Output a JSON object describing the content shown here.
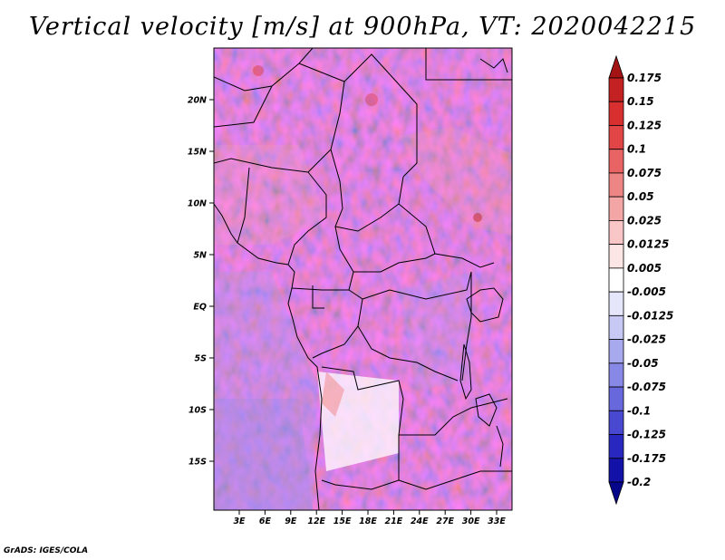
{
  "title": "Vertical velocity [m/s] at 900hPa, VT: 2020042215",
  "credit": "GrADS: IGES/COLA",
  "map": {
    "lat_labels": [
      "20N",
      "15N",
      "10N",
      "5N",
      "EQ",
      "5S",
      "10S",
      "15S"
    ],
    "lon_labels": [
      "3E",
      "6E",
      "9E",
      "12E",
      "15E",
      "18E",
      "21E",
      "24E",
      "27E",
      "30E",
      "33E"
    ],
    "lat_range": [
      -20,
      24.5
    ],
    "lon_range": [
      0,
      35
    ]
  },
  "colorbar": {
    "labels": [
      "0.175",
      "0.15",
      "0.125",
      "0.1",
      "0.075",
      "0.05",
      "0.025",
      "0.0125",
      "0.005",
      "-0.005",
      "-0.0125",
      "-0.025",
      "-0.05",
      "-0.075",
      "-0.1",
      "-0.125",
      "-0.175",
      "-0.2"
    ],
    "colors": [
      "#a51414",
      "#c42222",
      "#d83030",
      "#e24545",
      "#e86464",
      "#ee8585",
      "#f4a5a5",
      "#f8c6c6",
      "#fce5e5",
      "#ffffff",
      "#e6e6fb",
      "#c8c8f5",
      "#a8a8ef",
      "#8888e6",
      "#6868dc",
      "#4848d0",
      "#2828c0",
      "#1212a8",
      "#06068a"
    ]
  }
}
